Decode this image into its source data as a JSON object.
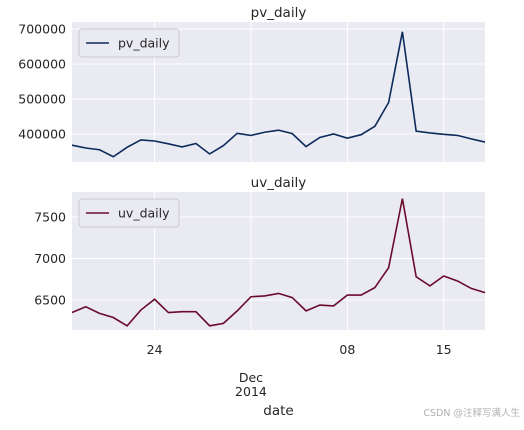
{
  "chart_data": [
    {
      "type": "line",
      "title": "pv_daily",
      "x": [
        "2014-11-18",
        "2014-11-19",
        "2014-11-20",
        "2014-11-21",
        "2014-11-22",
        "2014-11-23",
        "2014-11-24",
        "2014-11-25",
        "2014-11-26",
        "2014-11-27",
        "2014-11-28",
        "2014-11-29",
        "2014-11-30",
        "2014-12-01",
        "2014-12-02",
        "2014-12-03",
        "2014-12-04",
        "2014-12-05",
        "2014-12-06",
        "2014-12-07",
        "2014-12-08",
        "2014-12-09",
        "2014-12-10",
        "2014-12-11",
        "2014-12-12",
        "2014-12-13",
        "2014-12-14",
        "2014-12-15",
        "2014-12-16",
        "2014-12-17",
        "2014-12-18"
      ],
      "series": [
        {
          "name": "pv_daily",
          "color": "#0c2a5b",
          "values": [
            368000,
            360000,
            355000,
            335000,
            362000,
            383000,
            380000,
            372000,
            363000,
            373000,
            343000,
            367000,
            402000,
            396000,
            405000,
            411000,
            401000,
            364000,
            390000,
            400000,
            388000,
            398000,
            422000,
            490000,
            692000,
            408000,
            403000,
            399000,
            396000,
            386000,
            377000
          ]
        }
      ],
      "xlim": [
        "2014-11-18",
        "2014-12-18"
      ],
      "ylim": [
        320000,
        720000
      ],
      "yticks": [
        400000,
        500000,
        600000,
        700000
      ],
      "grid": true,
      "legend": "upper left"
    },
    {
      "type": "line",
      "title": "uv_daily",
      "x": [
        "2014-11-18",
        "2014-11-19",
        "2014-11-20",
        "2014-11-21",
        "2014-11-22",
        "2014-11-23",
        "2014-11-24",
        "2014-11-25",
        "2014-11-26",
        "2014-11-27",
        "2014-11-28",
        "2014-11-29",
        "2014-11-30",
        "2014-12-01",
        "2014-12-02",
        "2014-12-03",
        "2014-12-04",
        "2014-12-05",
        "2014-12-06",
        "2014-12-07",
        "2014-12-08",
        "2014-12-09",
        "2014-12-10",
        "2014-12-11",
        "2014-12-12",
        "2014-12-13",
        "2014-12-14",
        "2014-12-15",
        "2014-12-16",
        "2014-12-17",
        "2014-12-18"
      ],
      "series": [
        {
          "name": "uv_daily",
          "color": "#6b0b2c",
          "values": [
            6350,
            6420,
            6340,
            6290,
            6190,
            6380,
            6510,
            6350,
            6360,
            6360,
            6190,
            6220,
            6370,
            6540,
            6550,
            6580,
            6530,
            6370,
            6440,
            6430,
            6560,
            6560,
            6650,
            6890,
            7720,
            6780,
            6670,
            6790,
            6730,
            6640,
            6590
          ]
        }
      ],
      "xlim": [
        "2014-11-18",
        "2014-12-18"
      ],
      "xticks": [
        {
          "value": "2014-11-24",
          "label": "24"
        },
        {
          "value": "2014-12-01",
          "label": "Dec 2014"
        },
        {
          "value": "2014-12-08",
          "label": "08"
        },
        {
          "value": "2014-12-15",
          "label": "15"
        }
      ],
      "xlabel": "date",
      "ylim": [
        6140,
        7800
      ],
      "yticks": [
        6500,
        7000,
        7500
      ],
      "grid": true,
      "legend": "upper left"
    }
  ],
  "watermark": "CSDN @注释写满人生"
}
